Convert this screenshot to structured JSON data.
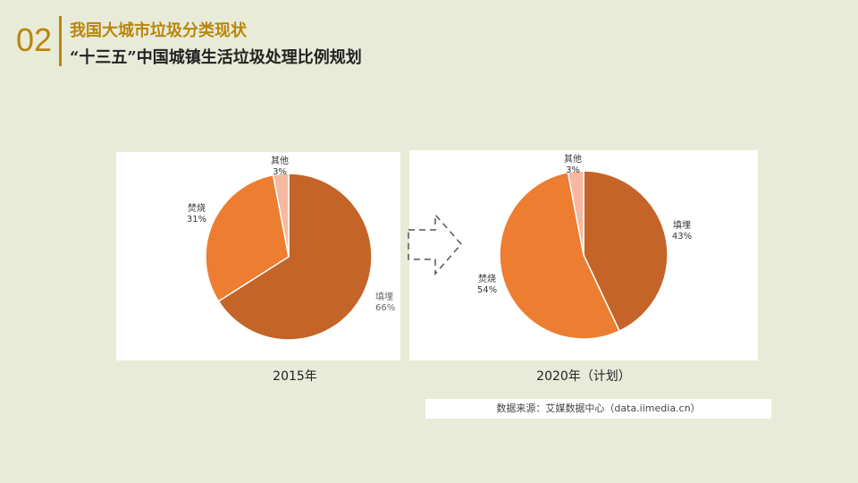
{
  "header": {
    "number": "02",
    "title": "我国大城市垃圾分类现状",
    "subtitle": "“十三五”中国城镇生活垃圾处理比例规划"
  },
  "source": "数据来源：艾媒数据中心（data.iimedia.cn）",
  "chart_data": [
    {
      "type": "pie",
      "title": "2015年",
      "labels": [
        "填埋",
        "焚烧",
        "其他"
      ],
      "values": [
        66,
        31,
        3
      ],
      "colors": [
        "#C46428",
        "#ED7D31",
        "#F4B9A0"
      ]
    },
    {
      "type": "pie",
      "title": "2020年（计划）",
      "labels": [
        "填埋",
        "焚烧",
        "其他"
      ],
      "values": [
        43,
        54,
        3
      ],
      "colors": [
        "#C46428",
        "#ED7D31",
        "#F4B9A0"
      ]
    }
  ]
}
